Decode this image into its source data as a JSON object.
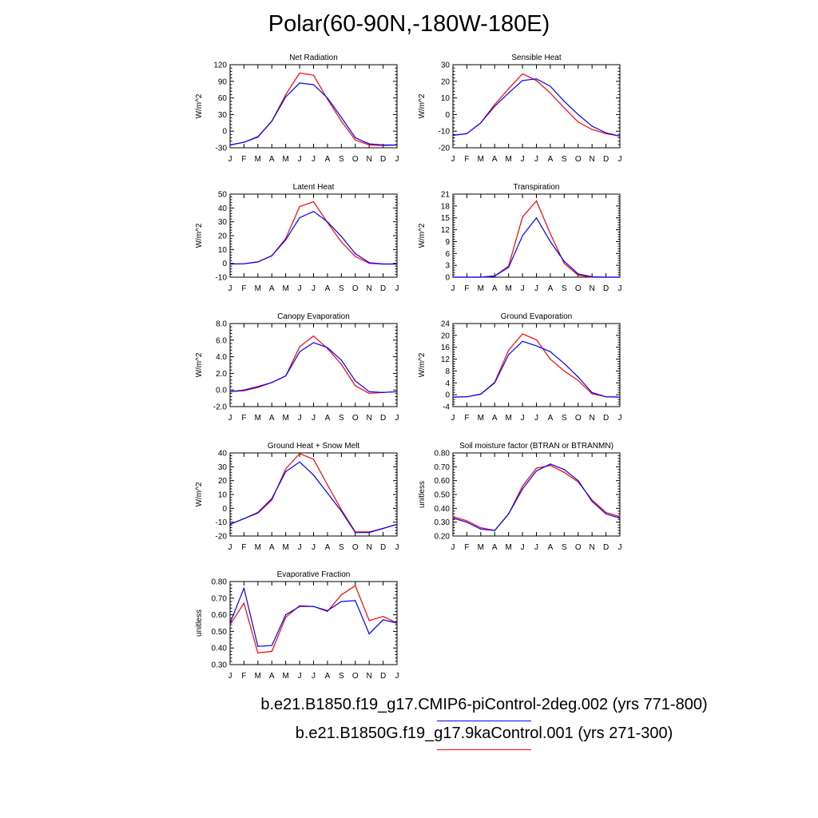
{
  "title": "Polar(60-90N,-180W-180E)",
  "months": [
    "J",
    "F",
    "M",
    "A",
    "M",
    "J",
    "J",
    "A",
    "S",
    "O",
    "N",
    "D",
    "J"
  ],
  "colors": {
    "series1": "#0000ff",
    "series2": "#ff0000"
  },
  "legend": [
    {
      "label": "b.e21.B1850.f19_g17.CMIP6-piControl-2deg.002 (yrs 771-800)",
      "color": "#0000ff"
    },
    {
      "label": "b.e21.B1850G.f19_g17.9kaControl.001 (yrs 271-300)",
      "color": "#ff0000"
    }
  ],
  "chart_data": [
    {
      "type": "line",
      "title": "Net Radiation",
      "ylabel": "W/m^2",
      "ylim": [
        -30,
        120
      ],
      "yticks": [
        -30,
        0,
        30,
        60,
        90,
        120
      ],
      "ytick_labels": [
        "-30",
        "0",
        "30",
        "60",
        "90",
        "120"
      ],
      "x": [
        "J",
        "F",
        "M",
        "A",
        "M",
        "J",
        "J",
        "A",
        "S",
        "O",
        "N",
        "D",
        "J"
      ],
      "series": [
        {
          "color": "#0000ff",
          "values": [
            -25,
            -20,
            -10,
            18,
            62,
            87,
            84,
            60,
            25,
            -12,
            -23,
            -25,
            -25
          ]
        },
        {
          "color": "#ff0000",
          "values": [
            -25,
            -20,
            -11,
            18,
            66,
            105,
            101,
            58,
            18,
            -16,
            -25,
            -26,
            -25
          ]
        }
      ]
    },
    {
      "type": "line",
      "title": "Sensible Heat",
      "ylabel": "W/m^2",
      "ylim": [
        -20,
        30
      ],
      "yticks": [
        -20,
        -10,
        0,
        10,
        20,
        30
      ],
      "ytick_labels": [
        "-20",
        "-10",
        "0",
        "10",
        "20",
        "30"
      ],
      "x": [
        "J",
        "F",
        "M",
        "A",
        "M",
        "J",
        "J",
        "A",
        "S",
        "O",
        "N",
        "D",
        "J"
      ],
      "series": [
        {
          "color": "#0000ff",
          "values": [
            -12.5,
            -11.5,
            -5,
            5,
            13,
            20.5,
            21.5,
            17,
            8,
            0,
            -7,
            -11,
            -13
          ]
        },
        {
          "color": "#ff0000",
          "values": [
            -12.5,
            -11.5,
            -5,
            6,
            15.5,
            24.5,
            20.5,
            13,
            4,
            -4.5,
            -9,
            -11.5,
            -13
          ]
        }
      ]
    },
    {
      "type": "line",
      "title": "Latent Heat",
      "ylabel": "W/m^2",
      "ylim": [
        -10,
        50
      ],
      "yticks": [
        -10,
        0,
        10,
        20,
        30,
        40,
        50
      ],
      "ytick_labels": [
        "-10",
        "0",
        "10",
        "20",
        "30",
        "40",
        "50"
      ],
      "x": [
        "J",
        "F",
        "M",
        "A",
        "M",
        "J",
        "J",
        "A",
        "S",
        "O",
        "N",
        "D",
        "J"
      ],
      "series": [
        {
          "color": "#0000ff",
          "values": [
            -0.5,
            -0.3,
            1,
            5.5,
            17,
            33,
            37.5,
            30,
            19.5,
            7,
            0.5,
            -0.5,
            -0.5
          ]
        },
        {
          "color": "#ff0000",
          "values": [
            -0.5,
            -0.3,
            1,
            5.5,
            18,
            41,
            44.5,
            29.5,
            15.5,
            5,
            0,
            -0.5,
            -0.5
          ]
        }
      ]
    },
    {
      "type": "line",
      "title": "Transpiration",
      "ylabel": "W/m^2",
      "ylim": [
        0,
        21
      ],
      "yticks": [
        0,
        3,
        6,
        9,
        12,
        15,
        18,
        21
      ],
      "ytick_labels": [
        "0",
        "3",
        "6",
        "9",
        "12",
        "15",
        "18",
        "21"
      ],
      "x": [
        "J",
        "F",
        "M",
        "A",
        "M",
        "J",
        "J",
        "A",
        "S",
        "O",
        "N",
        "D",
        "J"
      ],
      "series": [
        {
          "color": "#0000ff",
          "values": [
            0,
            0,
            0,
            0.3,
            2.5,
            10.5,
            15,
            9,
            4,
            0.8,
            0.1,
            0,
            0
          ]
        },
        {
          "color": "#ff0000",
          "values": [
            0,
            0,
            0,
            0.3,
            2.8,
            15.2,
            19.3,
            11,
            3.5,
            0.5,
            0,
            0,
            0
          ]
        }
      ]
    },
    {
      "type": "line",
      "title": "Canopy Evaporation",
      "ylabel": "W/m^2",
      "ylim": [
        -2,
        8
      ],
      "yticks": [
        -2,
        0,
        2,
        4,
        6,
        8
      ],
      "ytick_labels": [
        "-2.0",
        "0.0",
        "2.0",
        "4.0",
        "6.0",
        "8.0"
      ],
      "x": [
        "J",
        "F",
        "M",
        "A",
        "M",
        "J",
        "J",
        "A",
        "S",
        "O",
        "N",
        "D",
        "J"
      ],
      "series": [
        {
          "color": "#0000ff",
          "values": [
            -0.2,
            0,
            0.4,
            0.9,
            1.7,
            4.6,
            5.7,
            5.1,
            3.6,
            1.1,
            -0.2,
            -0.3,
            -0.2
          ]
        },
        {
          "color": "#ff0000",
          "values": [
            -0.2,
            -0.1,
            0.3,
            0.9,
            1.7,
            5.2,
            6.5,
            5.0,
            3.1,
            0.5,
            -0.4,
            -0.3,
            -0.2
          ]
        }
      ]
    },
    {
      "type": "line",
      "title": "Ground Evaporation",
      "ylabel": "W/m^2",
      "ylim": [
        -4,
        24
      ],
      "yticks": [
        -4,
        0,
        4,
        8,
        12,
        16,
        20,
        24
      ],
      "ytick_labels": [
        "-4",
        "0",
        "4",
        "8",
        "12",
        "16",
        "20",
        "24"
      ],
      "x": [
        "J",
        "F",
        "M",
        "A",
        "M",
        "J",
        "J",
        "A",
        "S",
        "O",
        "N",
        "D",
        "J"
      ],
      "series": [
        {
          "color": "#0000ff",
          "values": [
            -0.8,
            -0.7,
            0.2,
            4,
            13.5,
            18,
            16.5,
            14.5,
            10.5,
            6,
            0.7,
            -0.7,
            -0.8
          ]
        },
        {
          "color": "#ff0000",
          "values": [
            -0.8,
            -0.7,
            0.2,
            4.2,
            15,
            20.5,
            18.5,
            12,
            8,
            4.8,
            0.3,
            -0.7,
            -0.8
          ]
        }
      ]
    },
    {
      "type": "line",
      "title": "Ground Heat + Snow Melt",
      "ylabel": "W/m^2",
      "ylim": [
        -20,
        40
      ],
      "yticks": [
        -20,
        -10,
        0,
        10,
        20,
        30,
        40
      ],
      "ytick_labels": [
        "-20",
        "-10",
        "0",
        "10",
        "20",
        "30",
        "40"
      ],
      "x": [
        "J",
        "F",
        "M",
        "A",
        "M",
        "J",
        "J",
        "A",
        "S",
        "O",
        "N",
        "D",
        "J"
      ],
      "series": [
        {
          "color": "#0000ff",
          "values": [
            -11.5,
            -7.5,
            -3,
            7,
            26.5,
            33.5,
            24,
            11,
            -2,
            -17.5,
            -17.5,
            -14.5,
            -11.5
          ]
        },
        {
          "color": "#ff0000",
          "values": [
            -11.5,
            -7.5,
            -3.5,
            6,
            28.5,
            39.5,
            35.5,
            17,
            -1,
            -17,
            -17,
            -14.5,
            -11.5
          ]
        }
      ]
    },
    {
      "type": "line",
      "title": "Soil moisture factor (BTRAN or BTRANMN)",
      "ylabel": "unitless",
      "ylim": [
        0.2,
        0.8
      ],
      "yticks": [
        0.2,
        0.3,
        0.4,
        0.5,
        0.6,
        0.7,
        0.8
      ],
      "ytick_labels": [
        "0.20",
        "0.30",
        "0.40",
        "0.50",
        "0.60",
        "0.70",
        "0.80"
      ],
      "x": [
        "J",
        "F",
        "M",
        "A",
        "M",
        "J",
        "J",
        "A",
        "S",
        "O",
        "N",
        "D",
        "J"
      ],
      "series": [
        {
          "color": "#0000ff",
          "values": [
            0.33,
            0.3,
            0.25,
            0.24,
            0.36,
            0.54,
            0.67,
            0.72,
            0.68,
            0.6,
            0.45,
            0.36,
            0.33
          ]
        },
        {
          "color": "#ff0000",
          "values": [
            0.34,
            0.31,
            0.26,
            0.24,
            0.36,
            0.56,
            0.69,
            0.71,
            0.66,
            0.59,
            0.46,
            0.37,
            0.34
          ]
        }
      ]
    },
    {
      "type": "line",
      "title": "Evaporative Fraction",
      "ylabel": "unitless",
      "ylim": [
        0.3,
        0.8
      ],
      "yticks": [
        0.3,
        0.4,
        0.5,
        0.6,
        0.7,
        0.8
      ],
      "ytick_labels": [
        "0.30",
        "0.40",
        "0.50",
        "0.60",
        "0.70",
        "0.80"
      ],
      "x": [
        "J",
        "F",
        "M",
        "A",
        "M",
        "J",
        "J",
        "A",
        "S",
        "O",
        "N",
        "D",
        "J"
      ],
      "series": [
        {
          "color": "#0000ff",
          "values": [
            0.55,
            0.76,
            0.41,
            0.415,
            0.6,
            0.65,
            0.65,
            0.625,
            0.68,
            0.685,
            0.485,
            0.57,
            0.55
          ]
        },
        {
          "color": "#ff0000",
          "values": [
            0.54,
            0.67,
            0.37,
            0.38,
            0.585,
            0.655,
            0.65,
            0.62,
            0.72,
            0.775,
            0.565,
            0.59,
            0.55
          ]
        }
      ]
    }
  ]
}
